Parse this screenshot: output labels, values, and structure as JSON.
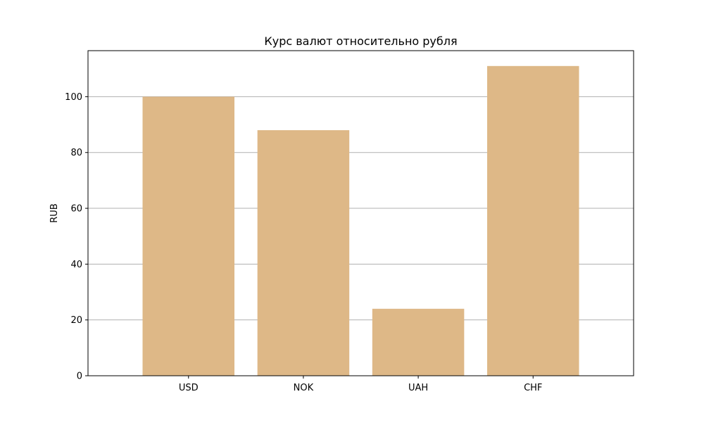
{
  "chart_data": {
    "type": "bar",
    "title": "Курс валют относительно рубля",
    "xlabel": "",
    "ylabel": "RUB",
    "categories": [
      "USD",
      "NOK",
      "UAH",
      "CHF"
    ],
    "values": [
      100,
      88,
      24,
      111
    ],
    "ylim": [
      0,
      116.5
    ],
    "yticks": [
      0,
      20,
      40,
      60,
      80,
      100
    ],
    "grid": {
      "y": true,
      "x": false
    },
    "bar_color": "#deb887",
    "grid_color": "#b0b0b0"
  }
}
